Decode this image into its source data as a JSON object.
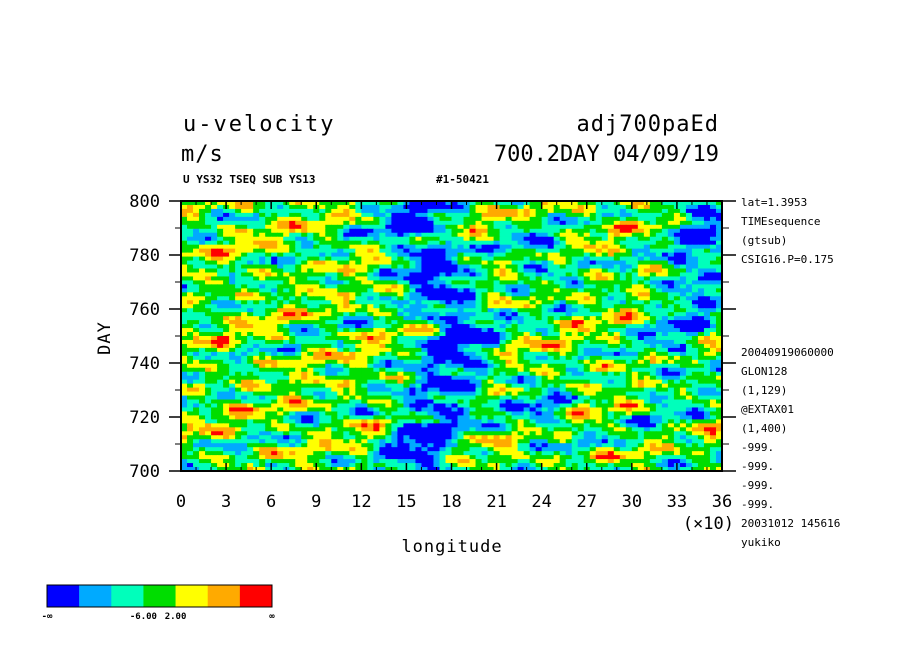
{
  "header": {
    "var_title": "u-velocity",
    "units": "m/s",
    "run_name": "adj700paEd",
    "time_info": "700.2DAY 04/09/19",
    "subtitle": "U YS32 TSEQ SUB YS13",
    "file_id": "#1-50421"
  },
  "side_info": {
    "top": [
      "lat=1.3953",
      "TIMEsequence",
      "(gtsub)",
      "CSIG16.P=0.175"
    ],
    "bottom": [
      "20040919060000",
      "GLON128",
      "(1,129)",
      "@EXTAX01",
      "(1,400)",
      "-999.",
      "-999.",
      "-999.",
      "-999.",
      "20031012 145616",
      "yukiko"
    ]
  },
  "chart_data": {
    "type": "heatmap",
    "xlabel": "longitude",
    "ylabel": "DAY",
    "x_multiplier": "(×10)",
    "xlim": [
      0,
      36
    ],
    "ylim": [
      700,
      800
    ],
    "x_ticks": [
      0,
      3,
      6,
      9,
      12,
      15,
      18,
      21,
      24,
      27,
      30,
      33,
      36
    ],
    "x_tick_labels": [
      "0",
      "3",
      "6",
      "9",
      "12",
      "15",
      "18",
      "21",
      "24",
      "27",
      "30",
      "33",
      "36"
    ],
    "y_ticks": [
      700,
      720,
      740,
      760,
      780,
      800
    ],
    "y_tick_labels": [
      "700",
      "720",
      "740",
      "760",
      "780",
      "800"
    ],
    "color_levels": [
      "#0000ff",
      "#00aaff",
      "#00ffbb",
      "#00dd00",
      "#ffff00",
      "#ffaa00",
      "#ff0000"
    ],
    "colorbar_labels": [
      "-∞",
      "-6.00",
      "2.00",
      "∞"
    ],
    "grid": false
  }
}
